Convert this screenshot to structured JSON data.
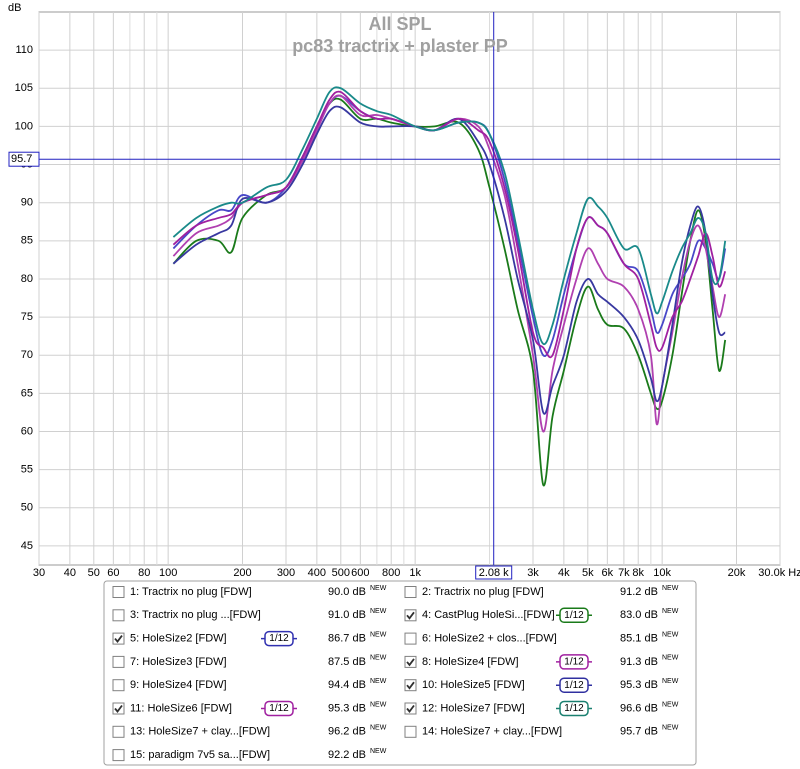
{
  "chart_data": {
    "type": "line",
    "title": "All SPL",
    "subtitle": "pc83 tractrix + plaster PP",
    "y_label": "dB",
    "log_x": true,
    "grid": true,
    "xlim": [
      30,
      30000
    ],
    "ylim": [
      42.5,
      115
    ],
    "xticks": [
      30,
      40,
      50,
      60,
      80,
      100,
      200,
      300,
      400,
      500,
      600,
      800,
      {
        "value": 1000,
        "label": "1k"
      },
      {
        "value": 3000,
        "label": "3k"
      },
      {
        "value": 4000,
        "label": "4k"
      },
      {
        "value": 5000,
        "label": "5k"
      },
      {
        "value": 6000,
        "label": "6k"
      },
      {
        "value": 7000,
        "label": "7k"
      },
      {
        "value": 8000,
        "label": "8k"
      },
      {
        "value": 10000,
        "label": "10k"
      },
      {
        "value": 20000,
        "label": "20k"
      },
      {
        "value": 30000,
        "label": "30.0k Hz"
      }
    ],
    "x_minor_ticks": [
      70,
      90,
      700,
      900,
      2000,
      9000
    ],
    "yticks": [
      45,
      50,
      55,
      60,
      65,
      70,
      75,
      80,
      85,
      90,
      95,
      100,
      105,
      110
    ],
    "cursor": {
      "x": {
        "value": 2080,
        "label": "2.08 k"
      },
      "y": 95.7,
      "color": "#2020c0"
    },
    "x": [
      105,
      130,
      160,
      180,
      200,
      250,
      300,
      350,
      400,
      450,
      500,
      600,
      700,
      800,
      1000,
      1200,
      1500,
      1800,
      2000,
      2300,
      2600,
      3000,
      3300,
      3600,
      4000,
      4500,
      5000,
      5500,
      6000,
      7000,
      8000,
      9000,
      9500,
      10000,
      11000,
      12000,
      13000,
      14000,
      15000,
      16000,
      17000,
      18000
    ],
    "series": [
      {
        "color": "#1a7a1a",
        "values": [
          82,
          85,
          85,
          83.5,
          88,
          91,
          92,
          96,
          100,
          103,
          103.5,
          101,
          101,
          100.5,
          100,
          100,
          100.5,
          97,
          92,
          84,
          76,
          68,
          53,
          62,
          68,
          75,
          79,
          76,
          74,
          73.5,
          70,
          65,
          63,
          64,
          70,
          78,
          85,
          89,
          85,
          76,
          68,
          72
        ]
      },
      {
        "color": "#4848c8",
        "values": [
          84,
          87,
          89,
          89,
          91,
          90,
          92,
          96,
          100,
          103,
          104,
          102,
          101,
          101,
          100,
          99.5,
          100.5,
          100.5,
          99,
          93,
          85,
          75,
          70,
          72,
          78,
          84,
          88,
          87,
          86,
          82,
          81,
          76,
          73,
          74,
          78,
          80,
          82,
          85,
          84,
          82,
          80,
          84
        ]
      },
      {
        "color": "#b040b0",
        "values": [
          83,
          86,
          87,
          88,
          90,
          91,
          92,
          95.5,
          99.5,
          103,
          104,
          101.5,
          101.5,
          101,
          100,
          99.5,
          101,
          100,
          97,
          91,
          82,
          70,
          60,
          68,
          74,
          80,
          84,
          82,
          80,
          79,
          76,
          70,
          61,
          66,
          73,
          80,
          85,
          87,
          84,
          79,
          75,
          78
        ]
      },
      {
        "color": "#3838a0",
        "values": [
          82,
          84.5,
          86,
          87,
          90.5,
          90,
          91.5,
          95,
          99,
          102,
          102.5,
          100.5,
          100,
          100,
          100,
          99.5,
          101,
          98,
          95,
          88,
          80,
          72,
          62.5,
          66,
          70,
          77,
          80,
          78,
          77,
          75,
          72,
          67,
          64,
          66,
          74,
          82,
          87,
          89.5,
          86,
          78,
          73,
          73
        ]
      },
      {
        "color": "#a020a0",
        "values": [
          84.5,
          87,
          88,
          88.5,
          90,
          91,
          92,
          96,
          100,
          103.5,
          104.5,
          102,
          101,
          101,
          100,
          99.5,
          101,
          99.5,
          98,
          92,
          84,
          73,
          71,
          70,
          76,
          84,
          88,
          87,
          86,
          82,
          80,
          74,
          71,
          71,
          75,
          77,
          80,
          83,
          86,
          83,
          79,
          81
        ]
      },
      {
        "color": "#1a8a8a",
        "values": [
          85.5,
          88,
          89.5,
          90,
          90,
          92,
          93,
          97,
          101,
          104.5,
          105,
          103,
          102,
          101.5,
          100,
          99.5,
          100.5,
          100.5,
          99,
          94,
          86,
          76,
          71.5,
          74,
          80,
          86,
          90.5,
          89.5,
          88,
          84,
          84,
          78,
          75.5,
          77,
          81,
          84,
          86,
          88,
          86,
          80,
          80,
          85
        ]
      }
    ]
  },
  "legend": {
    "entries": [
      {
        "label": "1: Tractrix no plug [FDW]",
        "color": "#40c040",
        "checked": false,
        "level": "90.0 dB",
        "tag": "NEW"
      },
      {
        "label": "2: Tractrix no plug [FDW]",
        "color": "#a01010",
        "checked": false,
        "level": "91.2 dB",
        "tag": "NEW"
      },
      {
        "label": "3: Tractrix no plug ...[FDW]",
        "color": "#b040b0",
        "checked": false,
        "level": "91.0 dB",
        "tag": "NEW"
      },
      {
        "label": "4: CastPlug HoleSi...[FDW]",
        "color": "#1a7a1a",
        "checked": true,
        "smoothing": "1/12",
        "level": "83.0 dB",
        "tag": "NEW"
      },
      {
        "label": "5: HoleSize2 [FDW]",
        "color": "#3030b0",
        "checked": true,
        "smoothing": "1/12",
        "level": "86.7 dB",
        "tag": "NEW"
      },
      {
        "label": "6: HoleSize2 + clos...[FDW]",
        "color": "#9030c0",
        "checked": false,
        "level": "85.1 dB",
        "tag": "NEW"
      },
      {
        "label": "7: HoleSize3 [FDW]",
        "color": "#c8c820",
        "checked": false,
        "level": "87.5 dB",
        "tag": "NEW"
      },
      {
        "label": "8: HoleSize4 [FDW]",
        "color": "#a020a0",
        "checked": true,
        "smoothing": "1/12",
        "level": "91.3 dB",
        "tag": "NEW"
      },
      {
        "label": "9: HoleSize4 [FDW]",
        "color": "#3080b0",
        "checked": false,
        "level": "94.4 dB",
        "tag": "NEW"
      },
      {
        "label": "10: HoleSize5 [FDW]",
        "color": "#3030a0",
        "checked": true,
        "smoothing": "1/12",
        "level": "95.3 dB",
        "tag": "NEW"
      },
      {
        "label": "11: HoleSize6 [FDW]",
        "color": "#a020a0",
        "checked": true,
        "smoothing": "1/12",
        "level": "95.3 dB",
        "tag": "NEW"
      },
      {
        "label": "12: HoleSize7 [FDW]",
        "color": "#1a8070",
        "checked": true,
        "smoothing": "1/12",
        "level": "96.6 dB",
        "tag": "NEW"
      },
      {
        "label": "13: HoleSize7 + clay...[FDW]",
        "color": "#b89010",
        "checked": false,
        "level": "96.2 dB",
        "tag": "NEW"
      },
      {
        "label": "14: HoleSize7 + clay...[FDW]",
        "color": "#20a060",
        "checked": false,
        "level": "95.7 dB",
        "tag": "NEW"
      },
      {
        "label": "15: paradigm 7v5 sa...[FDW]",
        "color": "#8020a0",
        "checked": false,
        "level": "92.2 dB",
        "tag": "NEW"
      }
    ]
  }
}
